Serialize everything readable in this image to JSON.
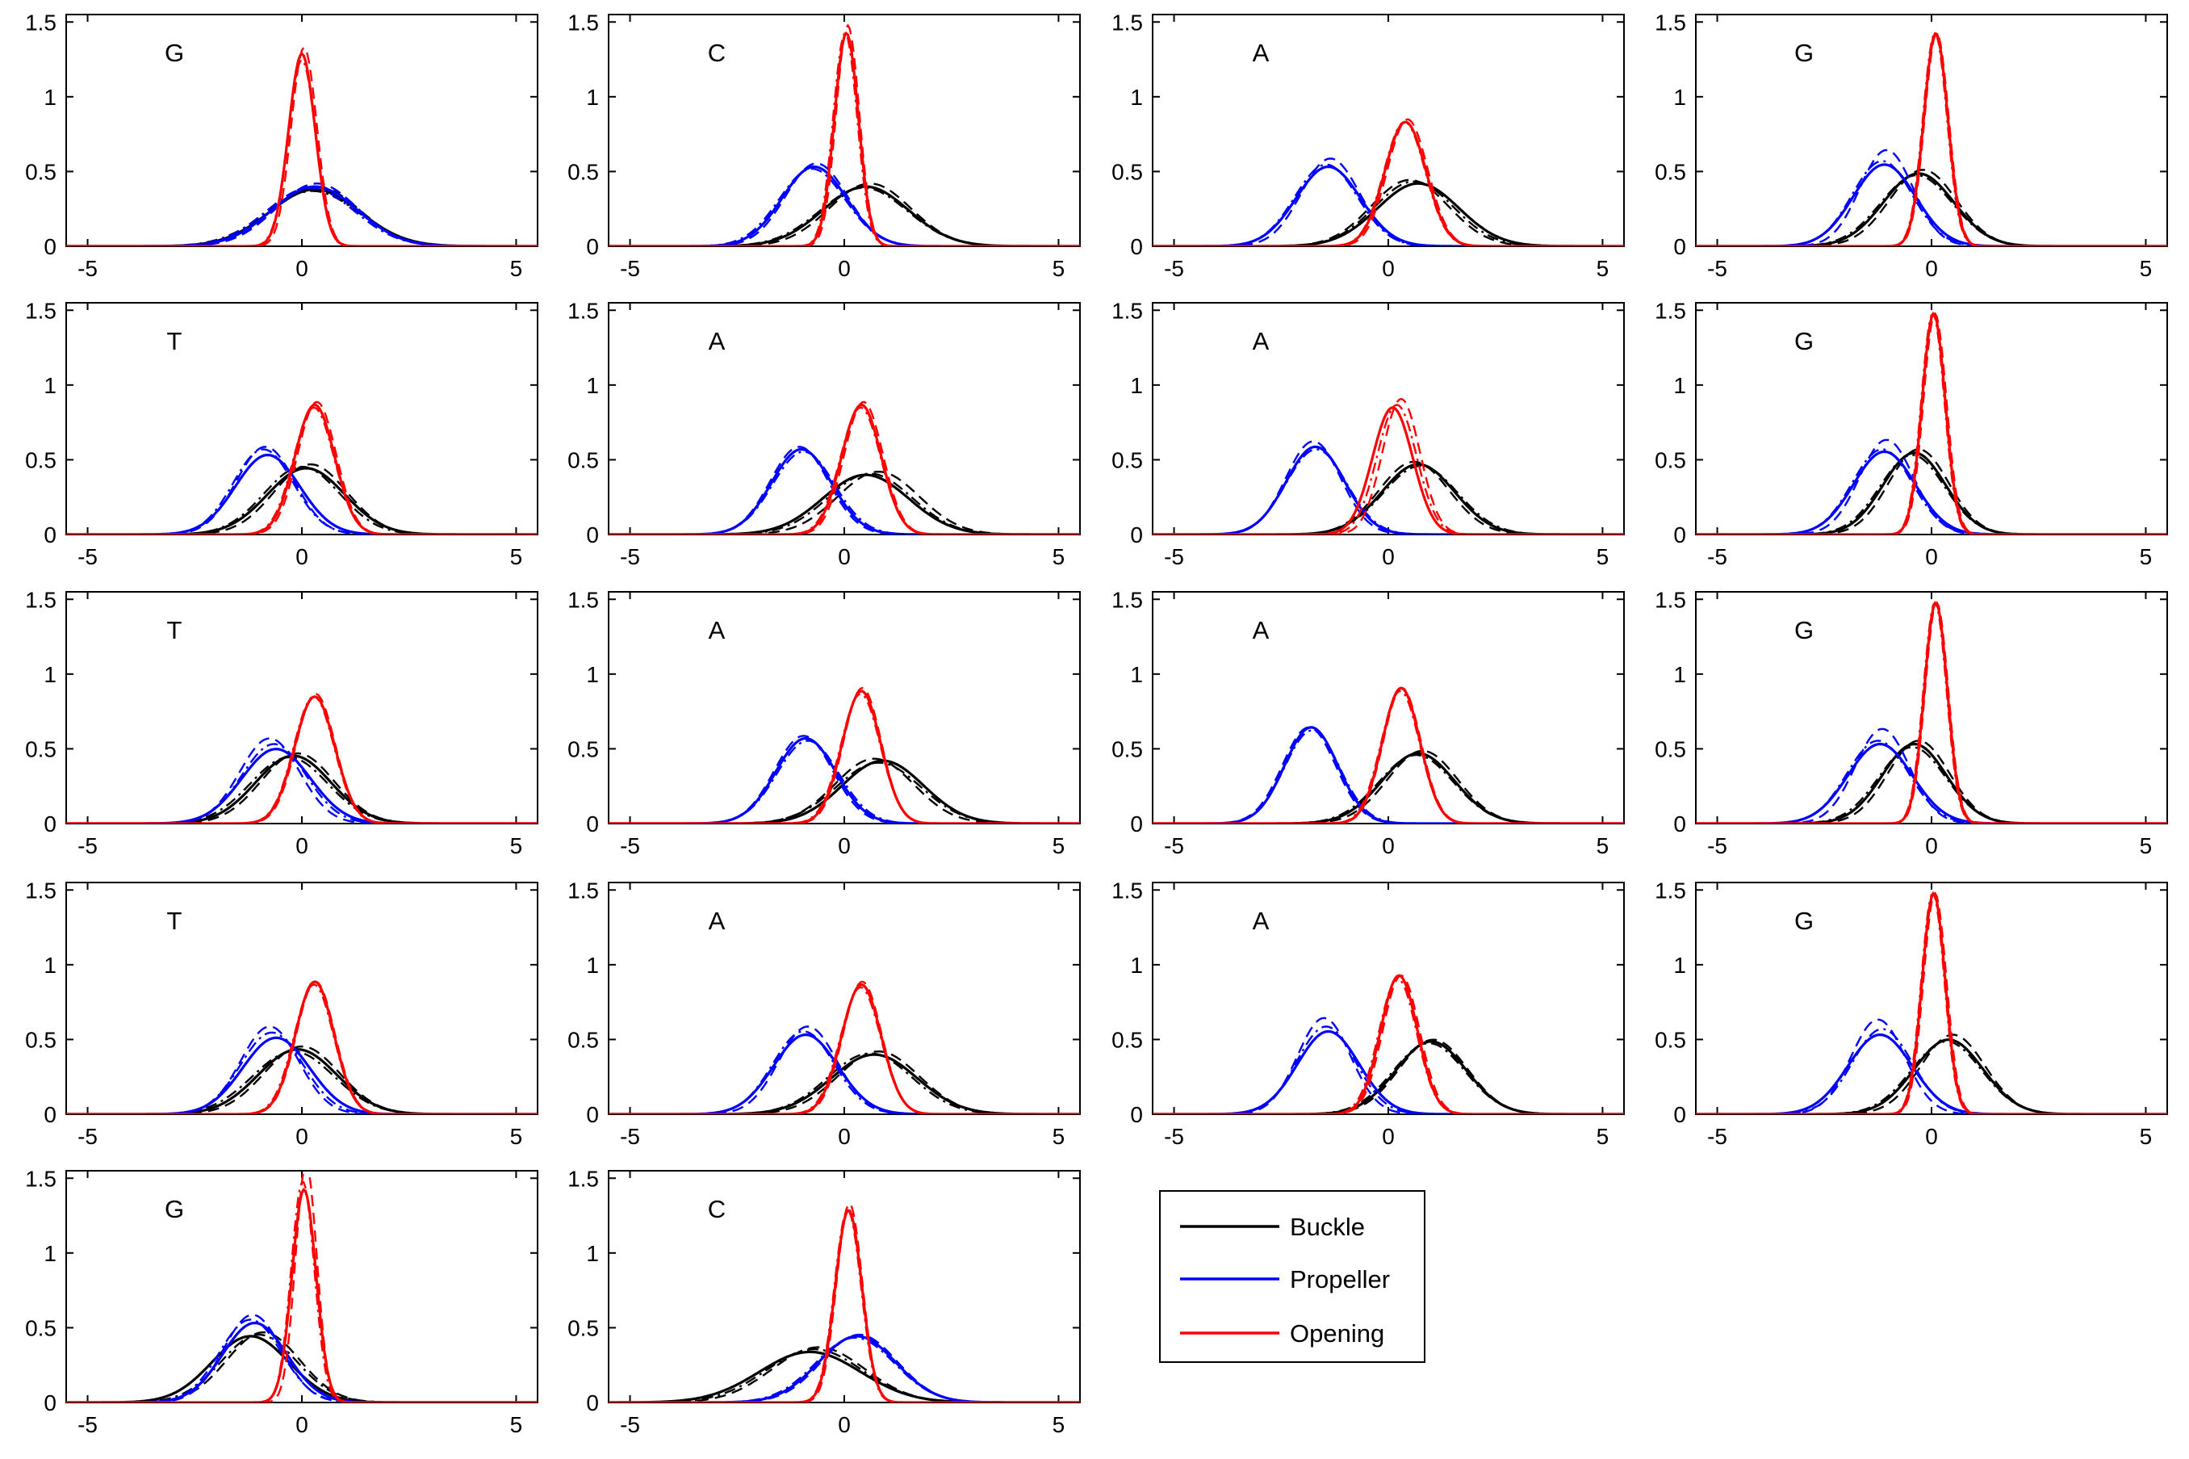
{
  "colors": {
    "buckle": "#000000",
    "propeller": "#0000ff",
    "opening": "#ff0000"
  },
  "legend": {
    "placement": "bottom-right",
    "entries": [
      {
        "key": "buckle",
        "label": "Buckle"
      },
      {
        "key": "propeller",
        "label": "Propeller"
      },
      {
        "key": "opening",
        "label": "Opening"
      }
    ]
  },
  "chart_data": {
    "type": "line",
    "layout": "grid 5x4 of small multiples, 18 panels",
    "xlim": [
      -5.5,
      5.5
    ],
    "ylim": [
      0,
      1.55
    ],
    "xticks": [
      -5,
      0,
      5
    ],
    "yticks": [
      0,
      0.5,
      1,
      1.5
    ],
    "xtick_labels": [
      "-5",
      "0",
      "5"
    ],
    "ytick_labels": [
      "0",
      "0.5",
      "1",
      "1.5"
    ],
    "grid": false,
    "line_styles": [
      "solid",
      "dashed",
      "dash-dot"
    ],
    "series_note": "each panel shows Gaussian-shaped distributions for Buckle (black), Propeller (blue), Opening (red); each as three variants (solid, dashed, dash-dot) given as [mean, sd] triples",
    "panels": [
      {
        "label": "G",
        "buckle": [
          [
            0.3,
            1.05
          ],
          [
            0.35,
            1.0
          ],
          [
            0.25,
            1.08
          ]
        ],
        "propeller": [
          [
            0.3,
            1.0
          ],
          [
            0.35,
            0.95
          ],
          [
            0.2,
            1.02
          ]
        ],
        "opening": [
          [
            0.0,
            0.31
          ],
          [
            0.05,
            0.3
          ],
          [
            0.0,
            0.32
          ]
        ]
      },
      {
        "label": "C",
        "buckle": [
          [
            0.5,
            1.0
          ],
          [
            0.6,
            0.95
          ],
          [
            0.45,
            1.02
          ]
        ],
        "propeller": [
          [
            -0.7,
            0.75
          ],
          [
            -0.65,
            0.72
          ],
          [
            -0.75,
            0.77
          ]
        ],
        "opening": [
          [
            0.05,
            0.28
          ],
          [
            0.08,
            0.27
          ],
          [
            0.02,
            0.28
          ]
        ]
      },
      {
        "label": "A",
        "buckle": [
          [
            0.7,
            0.95
          ],
          [
            0.5,
            0.9
          ],
          [
            0.6,
            0.92
          ]
        ],
        "propeller": [
          [
            -1.4,
            0.75
          ],
          [
            -1.35,
            0.68
          ],
          [
            -1.45,
            0.73
          ]
        ],
        "opening": [
          [
            0.4,
            0.48
          ],
          [
            0.45,
            0.47
          ],
          [
            0.38,
            0.48
          ]
        ]
      },
      {
        "label": "G",
        "buckle": [
          [
            -0.3,
            0.82
          ],
          [
            -0.2,
            0.78
          ],
          [
            -0.35,
            0.84
          ]
        ],
        "propeller": [
          [
            -1.1,
            0.73
          ],
          [
            -1.05,
            0.62
          ],
          [
            -1.15,
            0.7
          ]
        ],
        "opening": [
          [
            0.1,
            0.28
          ],
          [
            0.12,
            0.28
          ],
          [
            0.08,
            0.28
          ]
        ]
      },
      {
        "label": "T",
        "buckle": [
          [
            0.1,
            0.9
          ],
          [
            0.2,
            0.85
          ],
          [
            0.0,
            0.88
          ]
        ],
        "propeller": [
          [
            -0.8,
            0.75
          ],
          [
            -0.85,
            0.68
          ],
          [
            -0.9,
            0.7
          ]
        ],
        "opening": [
          [
            0.3,
            0.46
          ],
          [
            0.35,
            0.45
          ],
          [
            0.28,
            0.47
          ]
        ]
      },
      {
        "label": "A",
        "buckle": [
          [
            0.5,
            1.0
          ],
          [
            0.8,
            0.95
          ],
          [
            0.6,
            0.98
          ]
        ],
        "propeller": [
          [
            -1.0,
            0.7
          ],
          [
            -1.05,
            0.68
          ],
          [
            -0.95,
            0.72
          ]
        ],
        "opening": [
          [
            0.4,
            0.46
          ],
          [
            0.45,
            0.45
          ],
          [
            0.38,
            0.47
          ]
        ]
      },
      {
        "label": "A",
        "buckle": [
          [
            0.7,
            0.85
          ],
          [
            0.6,
            0.82
          ],
          [
            0.75,
            0.87
          ]
        ],
        "propeller": [
          [
            -1.7,
            0.68
          ],
          [
            -1.75,
            0.64
          ],
          [
            -1.68,
            0.7
          ]
        ],
        "opening": [
          [
            0.1,
            0.47
          ],
          [
            0.3,
            0.44
          ],
          [
            0.2,
            0.46
          ]
        ]
      },
      {
        "label": "G",
        "buckle": [
          [
            -0.4,
            0.73
          ],
          [
            -0.3,
            0.7
          ],
          [
            -0.45,
            0.75
          ]
        ],
        "propeller": [
          [
            -1.1,
            0.72
          ],
          [
            -1.05,
            0.63
          ],
          [
            -1.15,
            0.7
          ]
        ],
        "opening": [
          [
            0.05,
            0.27
          ],
          [
            0.08,
            0.27
          ],
          [
            0.03,
            0.27
          ]
        ]
      },
      {
        "label": "T",
        "buckle": [
          [
            -0.2,
            0.88
          ],
          [
            -0.1,
            0.85
          ],
          [
            -0.3,
            0.9
          ]
        ],
        "propeller": [
          [
            -0.6,
            0.8
          ],
          [
            -0.75,
            0.7
          ],
          [
            -0.65,
            0.75
          ]
        ],
        "opening": [
          [
            0.3,
            0.47
          ],
          [
            0.32,
            0.46
          ],
          [
            0.28,
            0.47
          ]
        ]
      },
      {
        "label": "A",
        "buckle": [
          [
            0.9,
            0.95
          ],
          [
            0.7,
            0.92
          ],
          [
            0.8,
            0.98
          ]
        ],
        "propeller": [
          [
            -0.9,
            0.7
          ],
          [
            -0.95,
            0.68
          ],
          [
            -0.85,
            0.72
          ]
        ],
        "opening": [
          [
            0.4,
            0.45
          ],
          [
            0.42,
            0.44
          ],
          [
            0.38,
            0.46
          ]
        ]
      },
      {
        "label": "A",
        "buckle": [
          [
            0.7,
            0.85
          ],
          [
            0.8,
            0.82
          ],
          [
            0.65,
            0.87
          ]
        ],
        "propeller": [
          [
            -1.8,
            0.62
          ],
          [
            -1.85,
            0.62
          ],
          [
            -1.78,
            0.64
          ]
        ],
        "opening": [
          [
            0.3,
            0.44
          ],
          [
            0.32,
            0.44
          ],
          [
            0.28,
            0.45
          ]
        ]
      },
      {
        "label": "G",
        "buckle": [
          [
            -0.4,
            0.75
          ],
          [
            -0.3,
            0.72
          ],
          [
            -0.45,
            0.78
          ]
        ],
        "propeller": [
          [
            -1.2,
            0.75
          ],
          [
            -1.15,
            0.63
          ],
          [
            -1.25,
            0.72
          ]
        ],
        "opening": [
          [
            0.1,
            0.27
          ],
          [
            0.12,
            0.27
          ],
          [
            0.08,
            0.27
          ]
        ]
      },
      {
        "label": "T",
        "buckle": [
          [
            -0.1,
            0.92
          ],
          [
            0.0,
            0.88
          ],
          [
            -0.2,
            0.95
          ]
        ],
        "propeller": [
          [
            -0.6,
            0.78
          ],
          [
            -0.75,
            0.68
          ],
          [
            -0.7,
            0.73
          ]
        ],
        "opening": [
          [
            0.3,
            0.45
          ],
          [
            0.32,
            0.45
          ],
          [
            0.28,
            0.46
          ]
        ]
      },
      {
        "label": "A",
        "buckle": [
          [
            0.7,
            1.0
          ],
          [
            0.8,
            0.95
          ],
          [
            0.6,
            0.98
          ]
        ],
        "propeller": [
          [
            -0.9,
            0.75
          ],
          [
            -0.85,
            0.68
          ],
          [
            -0.95,
            0.72
          ]
        ],
        "opening": [
          [
            0.4,
            0.46
          ],
          [
            0.42,
            0.45
          ],
          [
            0.38,
            0.47
          ]
        ]
      },
      {
        "label": "A",
        "buckle": [
          [
            1.0,
            0.82
          ],
          [
            1.05,
            0.8
          ],
          [
            0.95,
            0.84
          ]
        ],
        "propeller": [
          [
            -1.4,
            0.72
          ],
          [
            -1.5,
            0.62
          ],
          [
            -1.45,
            0.68
          ]
        ],
        "opening": [
          [
            0.25,
            0.43
          ],
          [
            0.3,
            0.43
          ],
          [
            0.22,
            0.44
          ]
        ]
      },
      {
        "label": "G",
        "buckle": [
          [
            0.4,
            0.8
          ],
          [
            0.5,
            0.75
          ],
          [
            0.35,
            0.82
          ]
        ],
        "propeller": [
          [
            -1.2,
            0.75
          ],
          [
            -1.25,
            0.63
          ],
          [
            -1.15,
            0.7
          ]
        ],
        "opening": [
          [
            0.05,
            0.27
          ],
          [
            0.08,
            0.27
          ],
          [
            0.03,
            0.27
          ]
        ]
      },
      {
        "label": "G",
        "buckle": [
          [
            -1.2,
            0.9
          ],
          [
            -0.9,
            0.85
          ],
          [
            -1.0,
            0.88
          ]
        ],
        "propeller": [
          [
            -1.1,
            0.75
          ],
          [
            -1.15,
            0.68
          ],
          [
            -1.2,
            0.72
          ]
        ],
        "opening": [
          [
            0.05,
            0.28
          ],
          [
            0.1,
            0.25
          ],
          [
            0.02,
            0.27
          ]
        ]
      },
      {
        "label": "C",
        "buckle": [
          [
            -0.8,
            1.18
          ],
          [
            -0.6,
            1.08
          ],
          [
            -0.7,
            1.12
          ]
        ],
        "propeller": [
          [
            0.3,
            0.9
          ],
          [
            0.35,
            0.88
          ],
          [
            0.25,
            0.92
          ]
        ],
        "opening": [
          [
            0.1,
            0.31
          ],
          [
            0.12,
            0.3
          ],
          [
            0.08,
            0.31
          ]
        ]
      }
    ]
  }
}
